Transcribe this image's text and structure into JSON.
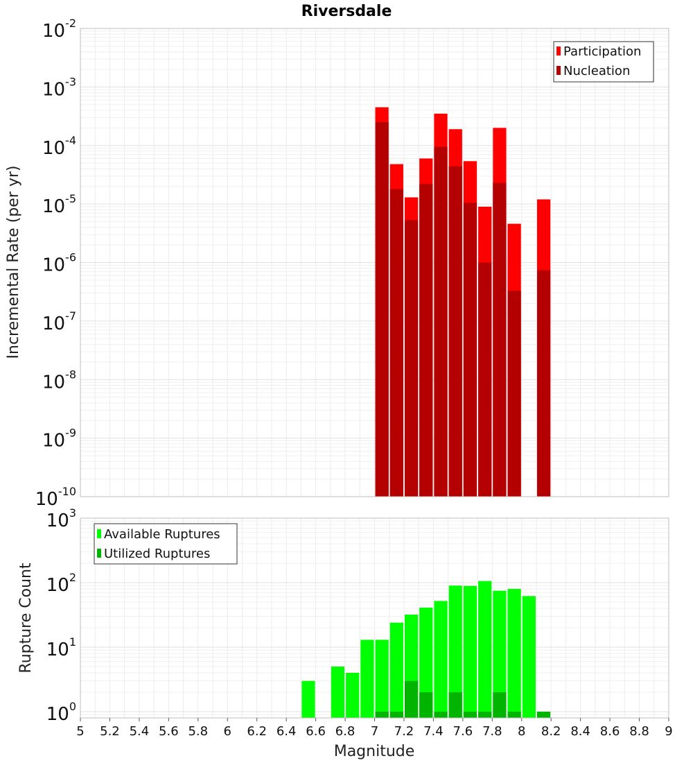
{
  "chart_data": {
    "title": "Riversdale",
    "x_axis": {
      "label": "Magnitude",
      "range": [
        5,
        9
      ],
      "ticks": [
        "5",
        "5.2",
        "5.4",
        "5.6",
        "5.8",
        "6",
        "6.2",
        "6.4",
        "6.6",
        "6.8",
        "7",
        "7.2",
        "7.4",
        "7.6",
        "7.8",
        "8",
        "8.2",
        "8.4",
        "8.6",
        "8.8",
        "9"
      ]
    },
    "bin_width": 0.1,
    "panels": [
      {
        "type": "bar",
        "ylabel": "Incremental Rate (per yr)",
        "yscale": "log",
        "ylim": [
          1e-10,
          0.01
        ],
        "y_tick_exponents": [
          -10,
          -9,
          -8,
          -7,
          -6,
          -5,
          -4,
          -3,
          -2
        ],
        "legend": {
          "position": "top-right",
          "entries": [
            "Participation",
            "Nucleation"
          ]
        },
        "series": [
          {
            "name": "Participation",
            "color": "#ff0000",
            "x": [
              7.05,
              7.15,
              7.25,
              7.35,
              7.45,
              7.55,
              7.65,
              7.75,
              7.85,
              7.95,
              8.15
            ],
            "values": [
              0.00045,
              4.8e-05,
              1.3e-05,
              6e-05,
              0.00035,
              0.00019,
              5.4e-05,
              9e-06,
              0.0002,
              4.6e-06,
              1.2e-05
            ]
          },
          {
            "name": "Nucleation",
            "color": "#b40000",
            "x": [
              7.05,
              7.15,
              7.25,
              7.35,
              7.45,
              7.55,
              7.65,
              7.75,
              7.85,
              7.95,
              8.15
            ],
            "values": [
              0.00025,
              1.8e-05,
              5.3e-06,
              2.2e-05,
              9.5e-05,
              4.4e-05,
              1.05e-05,
              1e-06,
              2.3e-05,
              3.3e-07,
              7.4e-07
            ]
          }
        ]
      },
      {
        "type": "bar",
        "ylabel": "Rupture Count",
        "yscale": "log",
        "ylim": [
          0.8,
          1000
        ],
        "y_tick_exponents": [
          0,
          1,
          2,
          3
        ],
        "legend": {
          "position": "top-left",
          "entries": [
            "Available Ruptures",
            "Utilized Ruptures"
          ]
        },
        "series": [
          {
            "name": "Available Ruptures",
            "color": "#00ff00",
            "x": [
              6.55,
              6.75,
              6.85,
              6.95,
              7.05,
              7.15,
              7.25,
              7.35,
              7.45,
              7.55,
              7.65,
              7.75,
              7.85,
              7.95,
              8.05
            ],
            "values": [
              3,
              5,
              4,
              13,
              13,
              24,
              32,
              41,
              52,
              90,
              89,
              106,
              75,
              80,
              62
            ]
          },
          {
            "name": "Utilized Ruptures",
            "color": "#00b400",
            "x": [
              7.05,
              7.15,
              7.25,
              7.35,
              7.45,
              7.55,
              7.65,
              7.75,
              7.85,
              7.95,
              8.15
            ],
            "values": [
              1,
              1,
              3,
              2,
              1,
              2,
              1,
              1,
              2,
              1,
              1
            ]
          }
        ]
      }
    ]
  }
}
